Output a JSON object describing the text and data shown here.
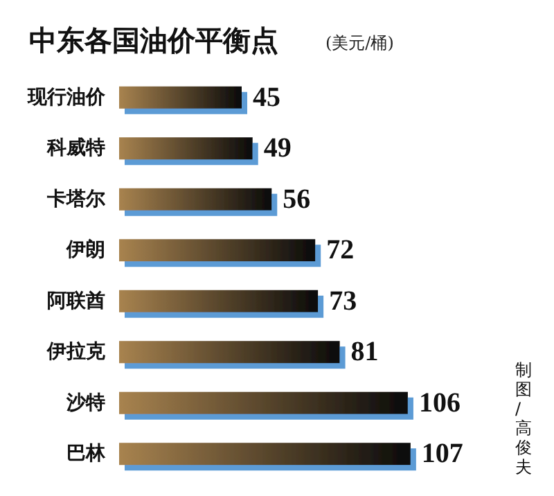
{
  "chart_data": {
    "type": "bar",
    "orientation": "horizontal",
    "title": "中东各国油价平衡点",
    "subtitle": "(美元/桶)",
    "categories": [
      "现行油价",
      "科威特",
      "卡塔尔",
      "伊朗",
      "阿联酋",
      "伊拉克",
      "沙特",
      "巴林"
    ],
    "series": [
      {
        "color": "#a8834f",
        "values": [
          45,
          49,
          56,
          72,
          73,
          81,
          106,
          107
        ]
      }
    ],
    "data_labels": true,
    "annotations": [
      "制图/高俊夫"
    ]
  }
}
